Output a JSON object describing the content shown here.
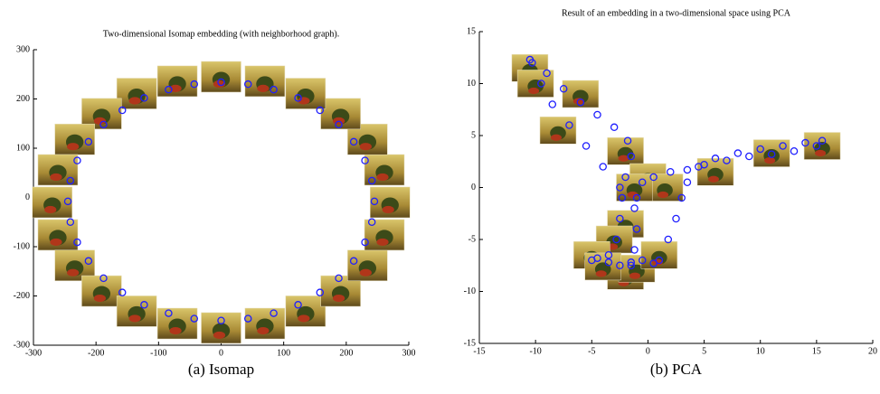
{
  "chart_data": [
    {
      "type": "scatter",
      "title": "Two-dimensional Isomap embedding (with neighborhood graph).",
      "caption": "(a) Isomap",
      "color": "#1f1fff",
      "xlim": [
        -300,
        300
      ],
      "ylim": [
        -300,
        300
      ],
      "xticks": [
        -300,
        -200,
        -100,
        0,
        100,
        200,
        300
      ],
      "yticks": [
        -300,
        -200,
        -100,
        0,
        100,
        200,
        300
      ],
      "x": [
        245,
        241,
        230,
        212,
        188,
        158,
        123,
        84,
        43,
        0,
        -43,
        -84,
        -123,
        -158,
        -188,
        -212,
        -230,
        -241,
        -245,
        -241,
        -230,
        -212,
        -188,
        -158,
        -123,
        -84,
        -43,
        0,
        43,
        84,
        123,
        158,
        188,
        212,
        230,
        241
      ],
      "y": [
        -8,
        34,
        75,
        113,
        148,
        177,
        202,
        219,
        230,
        234,
        230,
        219,
        202,
        177,
        148,
        113,
        75,
        34,
        -8,
        -50,
        -91,
        -129,
        -164,
        -193,
        -218,
        -235,
        -246,
        -250,
        -246,
        -235,
        -218,
        -193,
        -164,
        -129,
        -91,
        -50
      ],
      "thumbnails": {
        "x": [
          270,
          261,
          234,
          191,
          135,
          70,
          0,
          -70,
          -135,
          -191,
          -234,
          -261,
          -270,
          -261,
          -234,
          -191,
          -135,
          -70,
          0,
          70,
          135,
          191,
          234,
          261
        ],
        "y": [
          -10,
          56,
          118,
          170,
          211,
          236,
          245,
          236,
          211,
          170,
          118,
          56,
          -10,
          -76,
          -138,
          -190,
          -231,
          -256,
          -265,
          -256,
          -231,
          -190,
          -138,
          -76
        ]
      }
    },
    {
      "type": "scatter",
      "title": "Result of an embedding in a two-dimensional space using PCA",
      "caption": "(b) PCA",
      "color": "#1f1fff",
      "xlim": [
        -15,
        20
      ],
      "ylim": [
        -15,
        15
      ],
      "xticks": [
        -15,
        -10,
        -5,
        0,
        5,
        10,
        15,
        20
      ],
      "yticks": [
        -15,
        -10,
        -5,
        0,
        5,
        10,
        15
      ],
      "x": [
        -10.5,
        -9,
        -7.5,
        -6,
        -4.5,
        -3,
        -1.8,
        -1.5,
        -2,
        -2.3,
        -2.5,
        -2.8,
        -3.5,
        -5,
        -10.3,
        -9.5,
        -8.5,
        -7,
        -5.5,
        -4,
        -2.5,
        -1.2,
        -1,
        -1.2,
        -1.5,
        -4.5,
        -3.5,
        -2.5,
        -1.5,
        -0.5,
        0.5,
        1,
        1.8,
        2.5,
        3,
        3.5,
        4.5,
        6,
        8,
        10,
        12,
        14,
        15.5,
        -1,
        -0.5,
        0.5,
        2,
        3.5,
        5,
        7,
        9,
        11,
        13,
        15
      ],
      "y": [
        12.3,
        11,
        9.5,
        8.2,
        7,
        5.8,
        4.5,
        3,
        1,
        -1,
        -3,
        -5,
        -6.5,
        -7,
        12,
        10,
        8,
        6,
        4,
        2,
        0,
        -2,
        -4,
        -6,
        -7.5,
        -6.8,
        -7.2,
        -7.5,
        -7.2,
        -7,
        -7.3,
        -7,
        -5,
        -3,
        -1,
        0.5,
        2,
        2.8,
        3.3,
        3.7,
        4,
        4.3,
        4.5,
        -1,
        0.5,
        1,
        1.5,
        1.7,
        2.2,
        2.6,
        3,
        3.2,
        3.5,
        4
      ],
      "thumbnails": {
        "x": [
          -10.5,
          -10,
          -6,
          -8,
          -2,
          0,
          1.5,
          -1.2,
          6,
          11,
          15.5,
          -2,
          -3,
          -5,
          -2,
          -1,
          1,
          -4
        ],
        "y": [
          11.5,
          10,
          9,
          5.5,
          3.5,
          1,
          0,
          0,
          1.5,
          3.3,
          4,
          -3.5,
          -5,
          -6.5,
          -8.5,
          -7.8,
          -6.5,
          -7.6
        ]
      }
    }
  ]
}
